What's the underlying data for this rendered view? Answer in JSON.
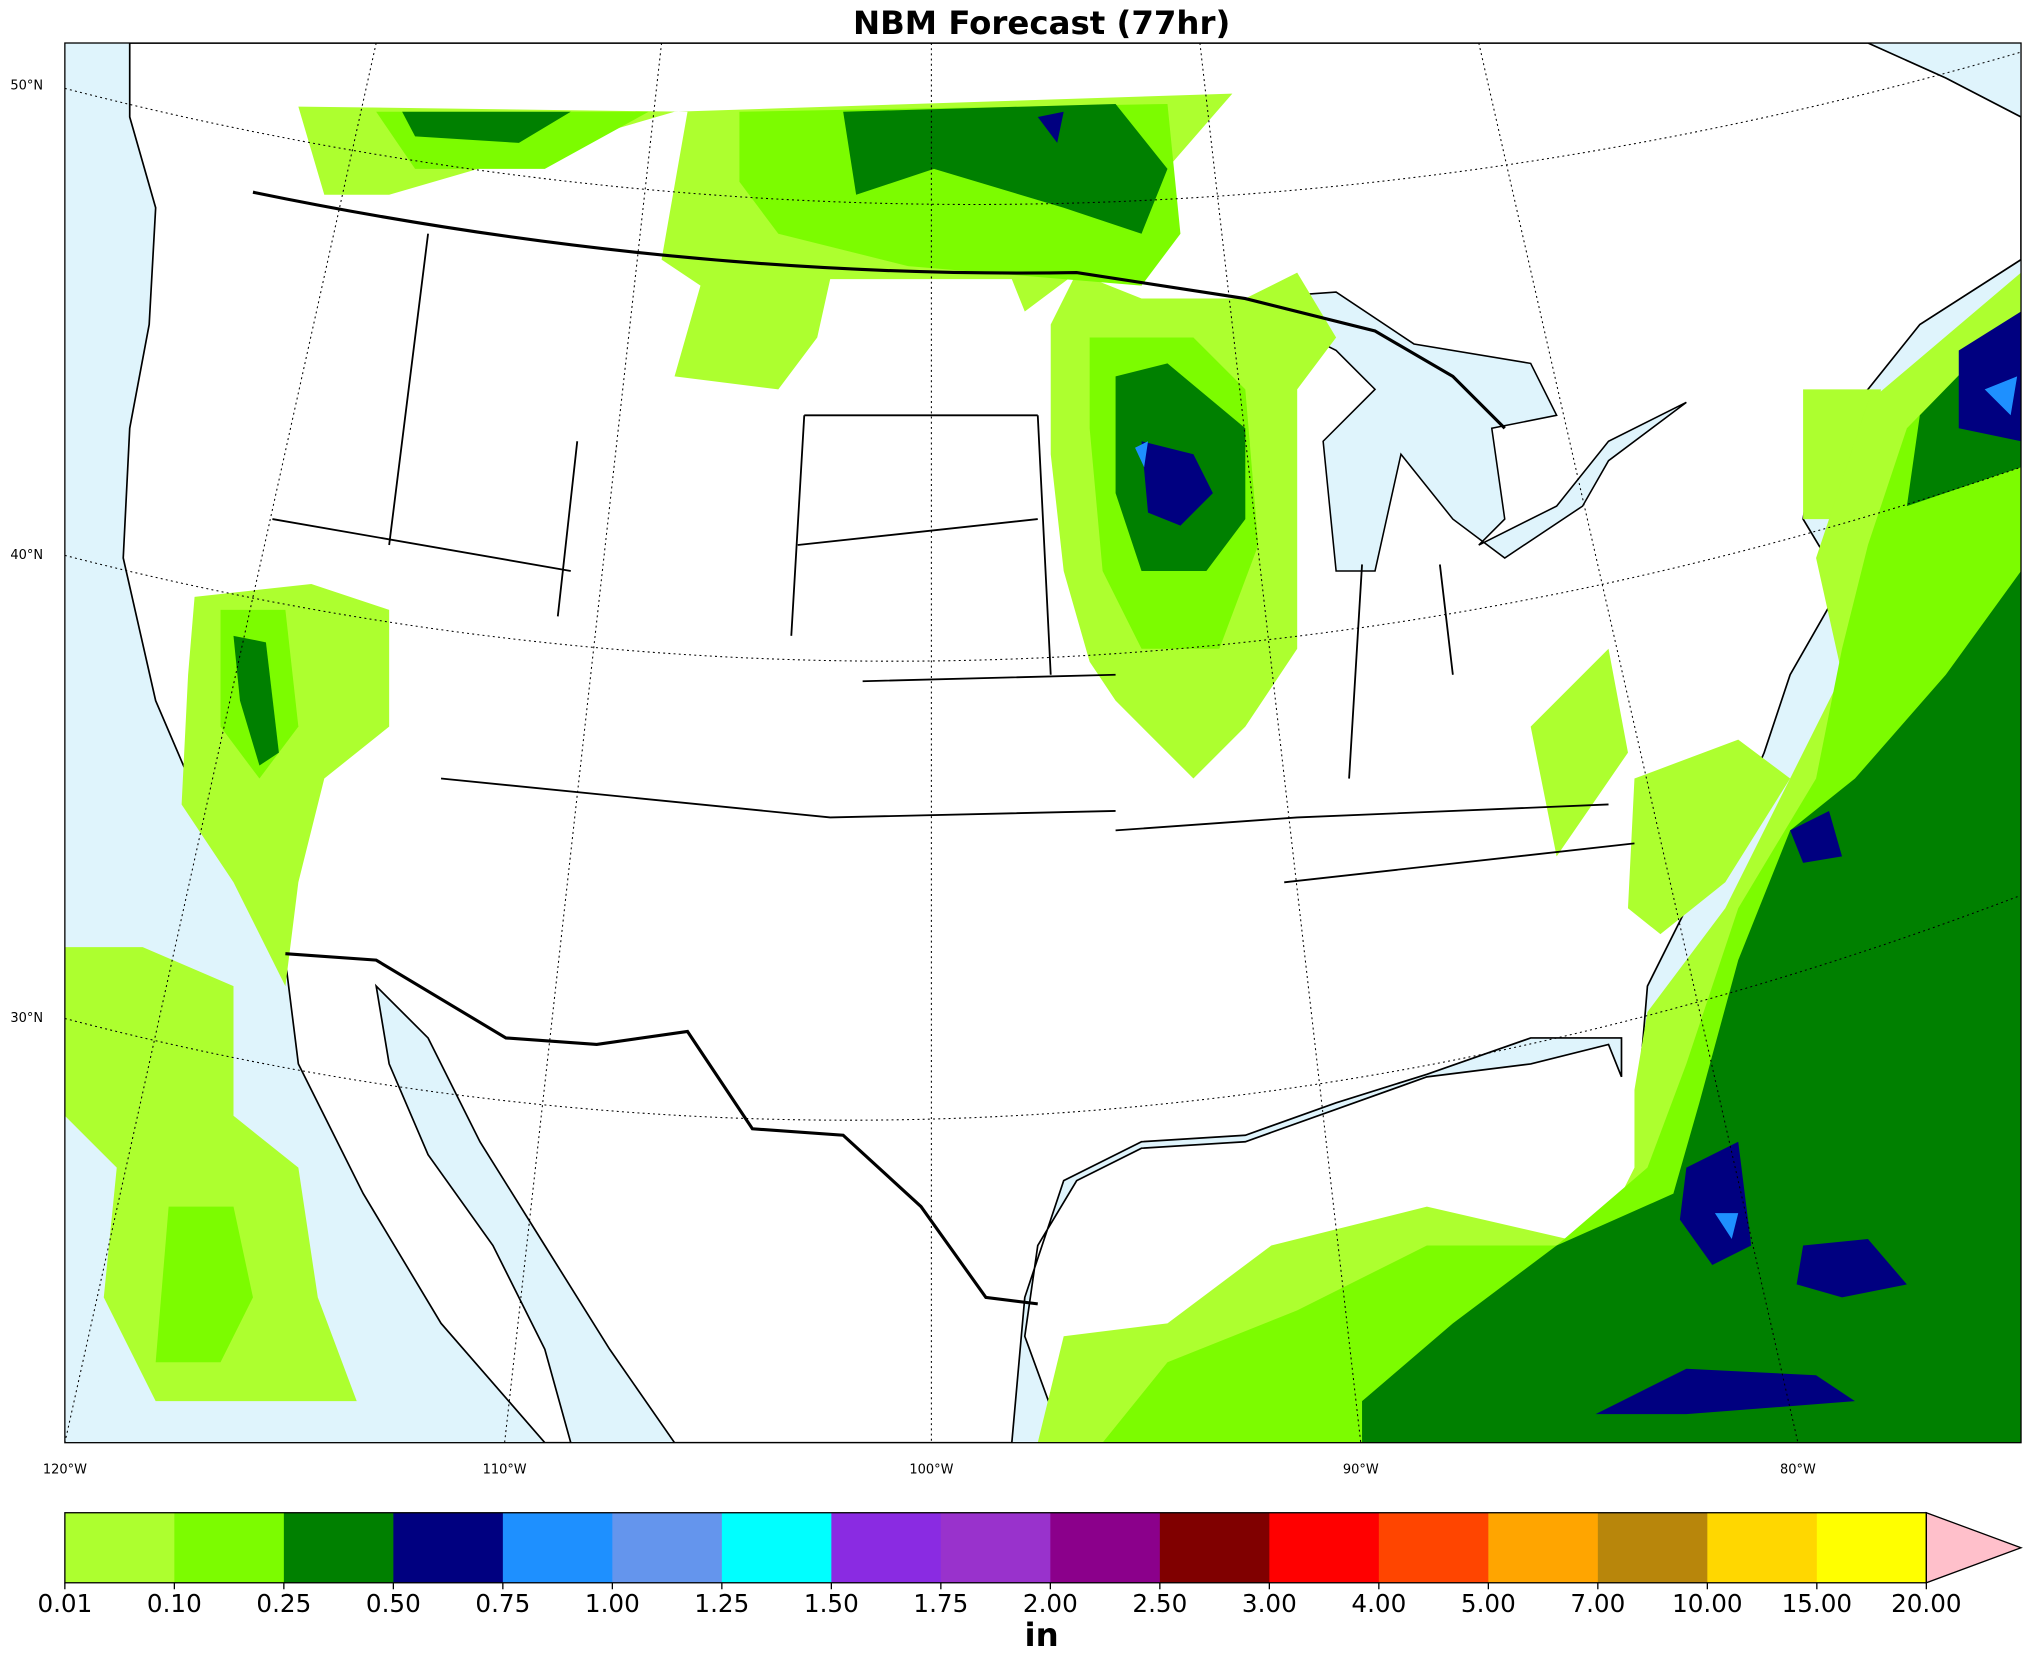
{
  "title": "NBM Forecast (77hr)",
  "map": {
    "lat_labels": [
      "50°N",
      "40°N",
      "30°N"
    ],
    "lon_labels": [
      "120°W",
      "110°W",
      "100°W",
      "90°W",
      "80°W"
    ]
  },
  "colorbar": {
    "levels": [
      {
        "value": 0.01,
        "label": "0.01"
      },
      {
        "value": 0.1,
        "label": "0.10"
      },
      {
        "value": 0.25,
        "label": "0.25"
      },
      {
        "value": 0.5,
        "label": "0.50"
      },
      {
        "value": 0.75,
        "label": "0.75"
      },
      {
        "value": 1,
        "label": "1.00"
      },
      {
        "value": 1.25,
        "label": "1.25"
      },
      {
        "value": 1.5,
        "label": "1.50"
      },
      {
        "value": 1.75,
        "label": "1.75"
      },
      {
        "value": 2,
        "label": "2.00"
      },
      {
        "value": 2.5,
        "label": "2.50"
      },
      {
        "value": 3,
        "label": "3.00"
      },
      {
        "value": 4,
        "label": "4.00"
      },
      {
        "value": 5,
        "label": "5.00"
      },
      {
        "value": 7,
        "label": "7.00"
      },
      {
        "value": 10,
        "label": "10.00"
      },
      {
        "value": 15,
        "label": "15.00"
      },
      {
        "value": 20,
        "label": "20.00"
      }
    ],
    "colors": [
      "#adff2f",
      "#7cfc00",
      "#008000",
      "#000080",
      "#1e90ff",
      "#6495ed",
      "#00ffff",
      "#8a2be2",
      "#9932cc",
      "#8b008b",
      "#800000",
      "#ff0000",
      "#ff4500",
      "#ffa500",
      "#b8860b",
      "#ffd700",
      "#ffff00"
    ],
    "over_color": "#ffc0cb",
    "unit": "in"
  }
}
